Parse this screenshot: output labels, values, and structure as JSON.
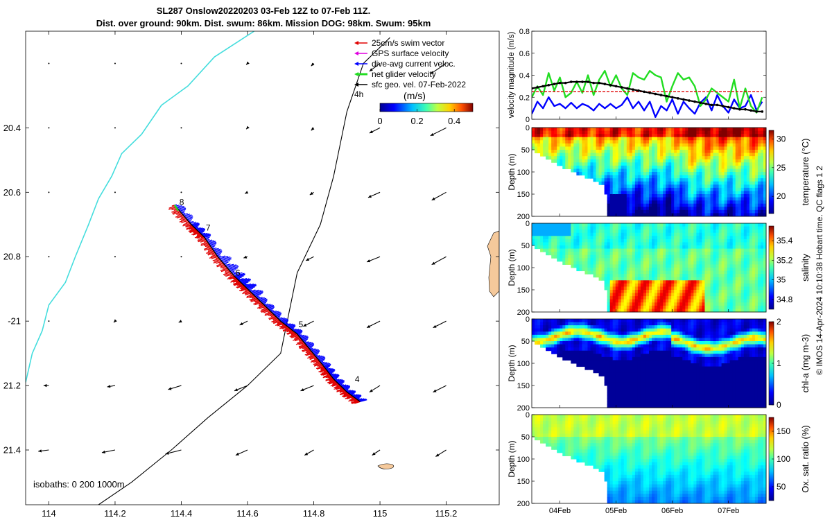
{
  "title": {
    "line1": "SL287 Onslow20220203 03-Feb 12Z to 07-Feb 11Z.",
    "line2": "Dist. over ground: 90km. Dist. swum: 86km. Mission DOG: 98km. Swum: 95km"
  },
  "credit": "© IMOS 14-Apr-2024 10:10:38 Hobart time. QC flags 1  2",
  "colors": {
    "swim": "#e00000",
    "gps": "#e000e0",
    "dive_avg": "#0000ff",
    "net": "#22dd22",
    "geo": "#000000",
    "coast": "#44dddd",
    "land": "#f5c99b"
  },
  "chart_data": [
    {
      "id": "map",
      "type": "scatter",
      "title": "",
      "xlim": [
        113.93,
        115.36
      ],
      "ylim": [
        -21.57,
        -20.1
      ],
      "x_ticks": [
        {
          "value": 114,
          "label": "114"
        },
        {
          "value": 114.2,
          "label": "114.2"
        },
        {
          "value": 114.4,
          "label": "114.4"
        },
        {
          "value": 114.6,
          "label": "114.6"
        },
        {
          "value": 114.8,
          "label": "114.8"
        },
        {
          "value": 115,
          "label": "115"
        },
        {
          "value": 115.2,
          "label": "115.2"
        }
      ],
      "y_ticks": [
        {
          "value": -20.4,
          "label": "20.4"
        },
        {
          "value": -20.6,
          "label": "20.6"
        },
        {
          "value": -20.8,
          "label": "20.8"
        },
        {
          "value": -21.0,
          "label": "-21"
        },
        {
          "value": -21.2,
          "label": "21.2"
        },
        {
          "value": -21.4,
          "label": "21.4"
        }
      ],
      "legend": {
        "placement": "top-right",
        "items": [
          {
            "label": "25cm/s swim vector",
            "color": "#e00000"
          },
          {
            "label": "GPS surface velocity",
            "color": "#e000e0"
          },
          {
            "label": "dive-avg current veloc.",
            "color": "#0000ff"
          },
          {
            "label": "net glider velocity",
            "color": "#22dd22"
          },
          {
            "label": "sfc geo. vel. 07-Feb-2022",
            "color": "#000000"
          }
        ]
      },
      "interval_label": "4h",
      "colorbar": {
        "label": "(m/s)",
        "min": 0,
        "max": 0.5,
        "ticks": [
          {
            "value": 0,
            "label": "0"
          },
          {
            "value": 0.2,
            "label": "0.2"
          },
          {
            "value": 0.4,
            "label": "0.4"
          }
        ]
      },
      "isobaths_label": "isobaths: 0   200  1000m",
      "track": [
        [
          114.38,
          -20.64
        ],
        [
          114.43,
          -20.7
        ],
        [
          114.47,
          -20.74
        ],
        [
          114.51,
          -20.8
        ],
        [
          114.56,
          -20.86
        ],
        [
          114.6,
          -20.9
        ],
        [
          114.65,
          -20.95
        ],
        [
          114.7,
          -21.0
        ],
        [
          114.75,
          -21.04
        ],
        [
          114.79,
          -21.09
        ],
        [
          114.83,
          -21.14
        ],
        [
          114.86,
          -21.18
        ],
        [
          114.9,
          -21.22
        ],
        [
          114.94,
          -21.25
        ]
      ],
      "day_markers": [
        {
          "label": "8",
          "lon": 114.39,
          "lat": -20.63
        },
        {
          "label": "7",
          "lon": 114.47,
          "lat": -20.71
        },
        {
          "label": "6",
          "lon": 114.56,
          "lat": -20.85
        },
        {
          "label": "5",
          "lon": 114.75,
          "lat": -21.01
        },
        {
          "label": "4",
          "lon": 114.92,
          "lat": -21.18
        }
      ],
      "geo_vectors_grid": {
        "lons": [
          114,
          114.2,
          114.4,
          114.6,
          114.8,
          115,
          115.2
        ],
        "lats": [
          -20.2,
          -20.4,
          -20.6,
          -20.8,
          -21.0,
          -21.2,
          -21.4
        ],
        "u": [
          [
            0.0,
            0.0,
            0.0,
            -0.01,
            -0.02,
            -0.08,
            -0.12
          ],
          [
            0.0,
            0.0,
            0.0,
            -0.01,
            -0.02,
            -0.08,
            -0.12
          ],
          [
            0.0,
            0.0,
            0.0,
            -0.02,
            -0.03,
            -0.09,
            -0.11
          ],
          [
            0.0,
            0.0,
            0.0,
            -0.03,
            -0.06,
            -0.1,
            -0.11
          ],
          [
            -0.01,
            -0.01,
            -0.02,
            -0.06,
            -0.08,
            -0.1,
            -0.1
          ],
          [
            -0.04,
            -0.06,
            -0.1,
            -0.1,
            -0.1,
            -0.08,
            -0.1
          ],
          [
            -0.08,
            -0.1,
            -0.12,
            -0.09,
            -0.07,
            -0.06,
            -0.08
          ]
        ],
        "v": [
          [
            0.0,
            0.0,
            0.0,
            -0.01,
            -0.02,
            -0.06,
            -0.08
          ],
          [
            0.0,
            0.0,
            0.0,
            -0.01,
            -0.02,
            -0.04,
            -0.06
          ],
          [
            0.0,
            0.0,
            0.0,
            -0.01,
            -0.02,
            -0.04,
            -0.06
          ],
          [
            0.0,
            0.0,
            0.0,
            -0.01,
            -0.03,
            -0.04,
            -0.06
          ],
          [
            0.0,
            -0.01,
            -0.01,
            -0.03,
            -0.04,
            -0.05,
            -0.05
          ],
          [
            0.0,
            -0.01,
            -0.03,
            -0.04,
            -0.04,
            -0.05,
            -0.05
          ],
          [
            -0.01,
            -0.02,
            -0.03,
            -0.04,
            -0.04,
            -0.04,
            -0.05
          ]
        ]
      },
      "coastline": [
        [
          114.62,
          -20.1
        ],
        [
          114.5,
          -20.18
        ],
        [
          114.42,
          -20.27
        ],
        [
          114.34,
          -20.33
        ],
        [
          114.28,
          -20.42
        ],
        [
          114.22,
          -20.48
        ],
        [
          114.19,
          -20.55
        ],
        [
          114.15,
          -20.62
        ],
        [
          114.12,
          -20.7
        ],
        [
          114.08,
          -20.8
        ],
        [
          114.05,
          -20.88
        ],
        [
          114.0,
          -20.95
        ],
        [
          113.98,
          -21.03
        ],
        [
          113.95,
          -21.1
        ],
        [
          113.93,
          -21.19
        ]
      ],
      "isobath_200": [
        [
          115.03,
          -20.12
        ],
        [
          114.95,
          -20.2
        ],
        [
          114.9,
          -20.35
        ],
        [
          114.86,
          -20.55
        ],
        [
          114.82,
          -20.7
        ],
        [
          114.75,
          -20.85
        ],
        [
          114.72,
          -21.0
        ],
        [
          114.7,
          -21.1
        ],
        [
          114.6,
          -21.2
        ],
        [
          114.48,
          -21.3
        ],
        [
          114.37,
          -21.4
        ],
        [
          114.25,
          -21.5
        ],
        [
          114.15,
          -21.57
        ]
      ]
    },
    {
      "id": "velocity",
      "type": "line",
      "title": "",
      "xlabel": "",
      "ylabel": "velocity magnitude (m/s)",
      "xlim": [
        3.5,
        7.67
      ],
      "ylim": [
        0,
        0.8
      ],
      "x_ticks": [
        {
          "value": 4,
          "label": "04Feb"
        },
        {
          "value": 5,
          "label": "05Feb"
        },
        {
          "value": 6,
          "label": "06Feb"
        },
        {
          "value": 7,
          "label": "07Feb"
        }
      ],
      "y_ticks": [
        {
          "value": 0,
          "label": "0"
        },
        {
          "value": 0.2,
          "label": "0.2"
        },
        {
          "value": 0.4,
          "label": "0.4"
        },
        {
          "value": 0.6,
          "label": "0.6"
        },
        {
          "value": 0.8,
          "label": "0.8"
        }
      ],
      "x": [
        3.5,
        3.6,
        3.7,
        3.8,
        3.9,
        4.0,
        4.1,
        4.2,
        4.3,
        4.4,
        4.5,
        4.6,
        4.7,
        4.8,
        4.9,
        5.0,
        5.1,
        5.2,
        5.3,
        5.4,
        5.5,
        5.6,
        5.7,
        5.8,
        5.9,
        6.0,
        6.1,
        6.2,
        6.3,
        6.4,
        6.5,
        6.6,
        6.7,
        6.8,
        6.9,
        7.0,
        7.1,
        7.2,
        7.3,
        7.4,
        7.5,
        7.6
      ],
      "series": [
        {
          "name": "dive-avg current veloc.",
          "color": "#0000ff",
          "values": [
            0.05,
            0.16,
            0.1,
            0.2,
            0.12,
            0.14,
            0.1,
            0.15,
            0.1,
            0.14,
            0.12,
            0.08,
            0.14,
            0.1,
            0.14,
            0.1,
            0.13,
            0.2,
            0.1,
            0.16,
            0.08,
            0.16,
            0.02,
            0.12,
            0.08,
            0.18,
            0.05,
            0.16,
            0.1,
            0.05,
            0.15,
            0.2,
            0.08,
            0.22,
            0.12,
            0.06,
            0.18,
            0.1,
            0.12,
            0.22,
            0.08,
            0.16
          ]
        },
        {
          "name": "net glider velocity",
          "color": "#22dd22",
          "values": [
            0.2,
            0.3,
            0.22,
            0.42,
            0.26,
            0.38,
            0.2,
            0.24,
            0.34,
            0.24,
            0.4,
            0.22,
            0.36,
            0.44,
            0.3,
            0.4,
            0.28,
            0.22,
            0.42,
            0.38,
            0.36,
            0.44,
            0.4,
            0.38,
            0.16,
            0.3,
            0.42,
            0.36,
            0.38,
            0.3,
            0.12,
            0.18,
            0.28,
            0.24,
            0.2,
            0.16,
            0.36,
            0.1,
            0.28,
            0.12,
            0.06,
            0.2
          ]
        },
        {
          "name": "25cm/s swim vector",
          "color": "#e00000",
          "values": [
            0.25,
            0.25,
            0.25,
            0.25,
            0.25,
            0.25,
            0.25,
            0.25,
            0.25,
            0.25,
            0.25,
            0.25,
            0.25,
            0.25,
            0.25,
            0.25,
            0.25,
            0.25,
            0.25,
            0.25,
            0.25,
            0.25,
            0.25,
            0.25,
            0.25,
            0.25,
            0.25,
            0.25,
            0.25,
            0.25,
            0.25,
            0.25,
            0.25,
            0.25,
            0.25,
            0.25,
            0.25,
            0.25,
            0.25,
            0.25,
            0.25,
            0.25
          ]
        },
        {
          "name": "sfc geo. vel. 07-Feb-2022",
          "color": "#000000",
          "values": [
            0.28,
            0.29,
            0.3,
            0.31,
            0.32,
            0.33,
            0.33,
            0.34,
            0.34,
            0.34,
            0.34,
            0.33,
            0.33,
            0.32,
            0.31,
            0.3,
            0.29,
            0.28,
            0.27,
            0.26,
            0.25,
            0.24,
            0.23,
            0.22,
            0.21,
            0.2,
            0.19,
            0.18,
            0.17,
            0.16,
            0.15,
            0.14,
            0.13,
            0.13,
            0.12,
            0.11,
            0.1,
            0.09,
            0.09,
            0.08,
            0.07,
            0.07
          ]
        }
      ]
    },
    {
      "id": "temperature",
      "type": "heatmap",
      "xlabel": "",
      "ylabel": "Depth (m)",
      "colorbar_label": "temperature (°C)",
      "colormap": "jet",
      "xlim": [
        3.5,
        7.67
      ],
      "ylim": [
        200,
        0
      ],
      "y_ticks": [
        {
          "value": 0,
          "label": "0"
        },
        {
          "value": 50,
          "label": "50"
        },
        {
          "value": 100,
          "label": "100"
        },
        {
          "value": 150,
          "label": "150"
        },
        {
          "value": 200,
          "label": "200"
        }
      ],
      "x_ticks": [
        {
          "value": 4,
          "label": "04Feb"
        },
        {
          "value": 5,
          "label": "05Feb"
        },
        {
          "value": 6,
          "label": "06Feb"
        },
        {
          "value": 7,
          "label": "07Feb"
        }
      ],
      "clim": [
        17,
        31.5
      ],
      "cb_ticks": [
        {
          "value": 20,
          "label": "20"
        },
        {
          "value": 25,
          "label": "25"
        },
        {
          "value": 30,
          "label": "30"
        }
      ],
      "profile": {
        "surface": 29.5,
        "bottom": 20.5,
        "bottom_event": 17.5,
        "pattern": "temp"
      }
    },
    {
      "id": "salinity",
      "type": "heatmap",
      "xlabel": "",
      "ylabel": "Depth (m)",
      "colorbar_label": "salinity",
      "colormap": "jet",
      "xlim": [
        3.5,
        7.67
      ],
      "ylim": [
        200,
        0
      ],
      "y_ticks": [
        {
          "value": 0,
          "label": "0"
        },
        {
          "value": 50,
          "label": "50"
        },
        {
          "value": 100,
          "label": "100"
        },
        {
          "value": 150,
          "label": "150"
        },
        {
          "value": 200,
          "label": "200"
        }
      ],
      "x_ticks": [
        {
          "value": 4,
          "label": "04Feb"
        },
        {
          "value": 5,
          "label": "05Feb"
        },
        {
          "value": 6,
          "label": "06Feb"
        },
        {
          "value": 7,
          "label": "07Feb"
        }
      ],
      "clim": [
        34.7,
        35.55
      ],
      "cb_ticks": [
        {
          "value": 34.8,
          "label": "34.8"
        },
        {
          "value": 35.0,
          "label": "35"
        },
        {
          "value": 35.2,
          "label": "35.2"
        },
        {
          "value": 35.4,
          "label": "35.4"
        }
      ],
      "profile": {
        "surface": 35.1,
        "bottom": 35.2,
        "bottom_event": 35.5,
        "pattern": "sal"
      }
    },
    {
      "id": "chla",
      "type": "heatmap",
      "xlabel": "",
      "ylabel": "Depth (m)",
      "colorbar_label": "chl-a (mg m-3)",
      "colormap": "jet",
      "xlim": [
        3.5,
        7.67
      ],
      "ylim": [
        200,
        0
      ],
      "y_ticks": [
        {
          "value": 0,
          "label": "0"
        },
        {
          "value": 50,
          "label": "50"
        },
        {
          "value": 100,
          "label": "100"
        },
        {
          "value": 150,
          "label": "150"
        },
        {
          "value": 200,
          "label": "200"
        }
      ],
      "x_ticks": [
        {
          "value": 4,
          "label": "04Feb"
        },
        {
          "value": 5,
          "label": "05Feb"
        },
        {
          "value": 6,
          "label": "06Feb"
        },
        {
          "value": 7,
          "label": "07Feb"
        }
      ],
      "clim": [
        0,
        2
      ],
      "cb_ticks": [
        {
          "value": 0,
          "label": "0"
        },
        {
          "value": 1,
          "label": "1"
        },
        {
          "value": 2,
          "label": "2"
        }
      ],
      "profile": {
        "surface": 0.1,
        "bottom": 0.3,
        "bottom_event": 0.1,
        "pattern": "chl"
      }
    },
    {
      "id": "oxygen",
      "type": "heatmap",
      "xlabel": "",
      "ylabel": "Depth (m)",
      "colorbar_label": "Ox. sat. ratio (%)",
      "colormap": "jet",
      "xlim": [
        3.5,
        7.67
      ],
      "ylim": [
        200,
        0
      ],
      "y_ticks": [
        {
          "value": 0,
          "label": "0"
        },
        {
          "value": 50,
          "label": "50"
        },
        {
          "value": 100,
          "label": "100"
        },
        {
          "value": 150,
          "label": "150"
        },
        {
          "value": 200,
          "label": "200"
        }
      ],
      "x_ticks": [
        {
          "value": 4,
          "label": "04Feb"
        },
        {
          "value": 5,
          "label": "05Feb"
        },
        {
          "value": 6,
          "label": "06Feb"
        },
        {
          "value": 7,
          "label": "07Feb"
        }
      ],
      "clim": [
        25,
        175
      ],
      "cb_ticks": [
        {
          "value": 50,
          "label": "50"
        },
        {
          "value": 100,
          "label": "100"
        },
        {
          "value": 150,
          "label": "150"
        }
      ],
      "profile": {
        "surface": 108,
        "bottom": 80,
        "bottom_event": 75,
        "pattern": "oxy"
      }
    }
  ]
}
